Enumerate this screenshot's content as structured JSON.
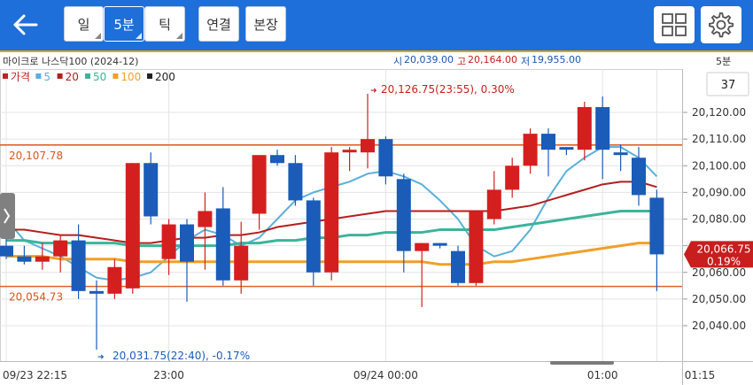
{
  "header": {
    "back_label": "back",
    "period_buttons": [
      {
        "label": "일",
        "selected": false
      },
      {
        "label": "5분",
        "selected": true
      },
      {
        "label": "틱",
        "selected": false
      }
    ],
    "action_buttons": [
      "연결",
      "본장"
    ],
    "grid_icon": "grid-icon",
    "settings_icon": "gear-icon"
  },
  "info": {
    "instrument": "마이크로 나스닥100 (2024-12)",
    "open_label": "시",
    "open_value": "20,039.00",
    "high_label": "고",
    "high_value": "20,164.00",
    "low_label": "저",
    "low_value": "19,955.00",
    "interval": "5분",
    "bar_count": "37"
  },
  "legend": [
    {
      "label": "가격",
      "color": "#c81e1e"
    },
    {
      "label": "5",
      "color": "#5ab0dc"
    },
    {
      "label": "20",
      "color": "#b41e1e"
    },
    {
      "label": "50",
      "color": "#3cb49a"
    },
    {
      "label": "100",
      "color": "#f0a028"
    },
    {
      "label": "200",
      "color": "#222222"
    }
  ],
  "annotations": {
    "high_note": "20,126.75(23:55), 0.30%",
    "low_note": "20,031.75(22:40), -0.17%",
    "upper_line_label": "20,107.78",
    "lower_line_label": "20,054.73",
    "current_price": "20,066.75",
    "current_change": "0.19%"
  },
  "chart_data": {
    "type": "candlestick",
    "ylim": [
      20030,
      20135
    ],
    "y_ticks": [
      "20,120.00",
      "20,110.00",
      "20,100.00",
      "20,090.00",
      "20,080.00",
      "20,070.00",
      "20,060.00",
      "20,050.00",
      "20,040.00"
    ],
    "y_tick_values": [
      20120,
      20110,
      20100,
      20090,
      20080,
      20070,
      20060,
      20050,
      20040
    ],
    "x_labels": [
      {
        "label": "09/23 22:15",
        "index": 0
      },
      {
        "label": "23:00",
        "index": 9
      },
      {
        "label": "09/24 00:00",
        "index": 21
      },
      {
        "label": "01:00",
        "index": 33
      },
      {
        "label": "01:15",
        "index": 36
      }
    ],
    "horizontal_lines": [
      20107.78,
      20054.73
    ],
    "candles": [
      {
        "o": 20070,
        "h": 20075,
        "l": 20065,
        "c": 20066
      },
      {
        "o": 20066,
        "h": 20070,
        "l": 20063,
        "c": 20064
      },
      {
        "o": 20064,
        "h": 20071,
        "l": 20061,
        "c": 20066
      },
      {
        "o": 20066,
        "h": 20074,
        "l": 20060,
        "c": 20072
      },
      {
        "o": 20072,
        "h": 20078,
        "l": 20050,
        "c": 20053
      },
      {
        "o": 20053,
        "h": 20057,
        "l": 20031,
        "c": 20052
      },
      {
        "o": 20052,
        "h": 20065,
        "l": 20050,
        "c": 20062
      },
      {
        "o": 20054,
        "h": 20101,
        "l": 20052,
        "c": 20101
      },
      {
        "o": 20101,
        "h": 20105,
        "l": 20078,
        "c": 20081
      },
      {
        "o": 20065,
        "h": 20080,
        "l": 20059,
        "c": 20078
      },
      {
        "o": 20078,
        "h": 20080,
        "l": 20049,
        "c": 20064
      },
      {
        "o": 20077,
        "h": 20090,
        "l": 20061,
        "c": 20083
      },
      {
        "o": 20084,
        "h": 20092,
        "l": 20055,
        "c": 20057
      },
      {
        "o": 20057,
        "h": 20079,
        "l": 20052,
        "c": 20070
      },
      {
        "o": 20082,
        "h": 20103,
        "l": 20076,
        "c": 20104
      },
      {
        "o": 20104,
        "h": 20106,
        "l": 20100,
        "c": 20101
      },
      {
        "o": 20101,
        "h": 20104,
        "l": 20085,
        "c": 20087
      },
      {
        "o": 20087,
        "h": 20088,
        "l": 20055,
        "c": 20060
      },
      {
        "o": 20060,
        "h": 20107,
        "l": 20057,
        "c": 20105
      },
      {
        "o": 20105,
        "h": 20107,
        "l": 20098,
        "c": 20106
      },
      {
        "o": 20105,
        "h": 20127,
        "l": 20099,
        "c": 20110
      },
      {
        "o": 20110,
        "h": 20111,
        "l": 20093,
        "c": 20096
      },
      {
        "o": 20095,
        "h": 20097,
        "l": 20060,
        "c": 20068
      },
      {
        "o": 20068,
        "h": 20071,
        "l": 20047,
        "c": 20071
      },
      {
        "o": 20071,
        "h": 20071,
        "l": 20069,
        "c": 20070
      },
      {
        "o": 20068,
        "h": 20070,
        "l": 20055,
        "c": 20056
      },
      {
        "o": 20056,
        "h": 20083,
        "l": 20055,
        "c": 20083
      },
      {
        "o": 20080,
        "h": 20098,
        "l": 20078,
        "c": 20091
      },
      {
        "o": 20091,
        "h": 20103,
        "l": 20088,
        "c": 20100
      },
      {
        "o": 20100,
        "h": 20114,
        "l": 20097,
        "c": 20112
      },
      {
        "o": 20112,
        "h": 20114,
        "l": 20096,
        "c": 20106
      },
      {
        "o": 20107,
        "h": 20107,
        "l": 20104,
        "c": 20106
      },
      {
        "o": 20106,
        "h": 20124,
        "l": 20102,
        "c": 20122
      },
      {
        "o": 20122,
        "h": 20126,
        "l": 20095,
        "c": 20106
      },
      {
        "o": 20105,
        "h": 20108,
        "l": 20098,
        "c": 20104
      },
      {
        "o": 20103,
        "h": 20107,
        "l": 20085,
        "c": 20089
      },
      {
        "o": 20088,
        "h": 20091,
        "l": 20053,
        "c": 20066.75
      }
    ],
    "series": [
      {
        "name": "5",
        "values": [
          20080,
          20072,
          20069,
          20066,
          20062,
          20058,
          20057,
          20058,
          20060,
          20066,
          20072,
          20076,
          20074,
          20070,
          20073,
          20080,
          20087,
          20090,
          20092,
          20094,
          20097,
          20098,
          20096,
          20093,
          20087,
          20080,
          20070,
          20066,
          20068,
          20076,
          20088,
          20098,
          20103,
          20107,
          20107,
          20103,
          20096
        ]
      },
      {
        "name": "20",
        "values": [
          20076,
          20076,
          20075,
          20074,
          20074,
          20073,
          20072,
          20071,
          20071,
          20072,
          20073,
          20073,
          20074,
          20074,
          20075,
          20077,
          20078,
          20079,
          20080,
          20081,
          20082,
          20083,
          20083,
          20083,
          20083,
          20083,
          20083,
          20083,
          20084,
          20085,
          20087,
          20089,
          20091,
          20093,
          20094,
          20094,
          20092
        ]
      },
      {
        "name": "50",
        "values": [
          20072,
          20072,
          20071,
          20071,
          20071,
          20071,
          20071,
          20070,
          20070,
          20070,
          20070,
          20070,
          20070,
          20071,
          20071,
          20072,
          20072,
          20073,
          20073,
          20074,
          20074,
          20075,
          20075,
          20075,
          20076,
          20076,
          20076,
          20076,
          20077,
          20078,
          20079,
          20080,
          20081,
          20082,
          20083,
          20083,
          20083
        ]
      },
      {
        "name": "100",
        "values": [
          20066,
          20066,
          20066,
          20065,
          20065,
          20065,
          20065,
          20064,
          20064,
          20064,
          20064,
          20064,
          20064,
          20064,
          20064,
          20064,
          20064,
          20064,
          20064,
          20064,
          20064,
          20064,
          20064,
          20064,
          20063,
          20063,
          20063,
          20064,
          20064,
          20065,
          20066,
          20067,
          20068,
          20069,
          20070,
          20071,
          20071
        ]
      }
    ]
  }
}
